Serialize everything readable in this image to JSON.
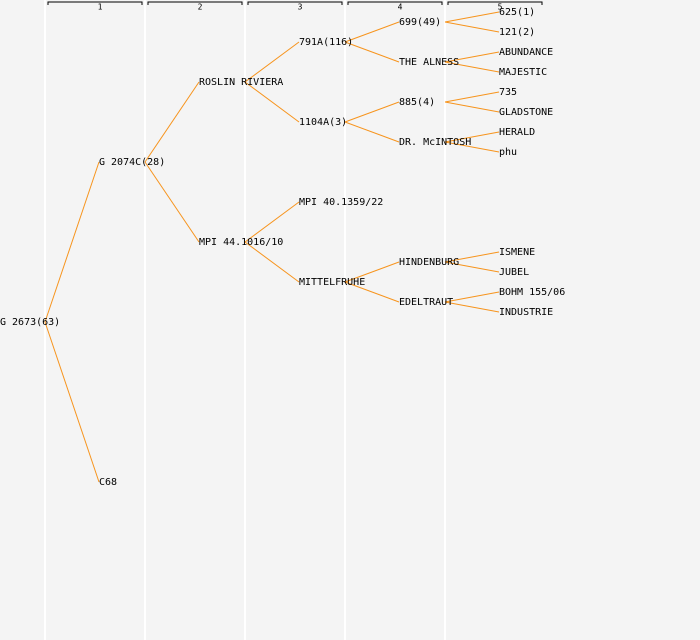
{
  "headers": [
    "1",
    "2",
    "3",
    "4",
    "5"
  ],
  "tree": {
    "label": "G 2673(63)",
    "children": [
      {
        "label": "G 2074C(28)",
        "children": [
          {
            "label": "ROSLIN RIVIERA",
            "children": [
              {
                "label": "791A(116)",
                "children": [
                  {
                    "label": "699(49)",
                    "children": [
                      {
                        "label": "625(1)"
                      },
                      {
                        "label": "121(2)"
                      }
                    ]
                  },
                  {
                    "label": "THE ALNESS",
                    "children": [
                      {
                        "label": "ABUNDANCE"
                      },
                      {
                        "label": "MAJESTIC"
                      }
                    ]
                  }
                ]
              },
              {
                "label": "1104A(3)",
                "children": [
                  {
                    "label": "885(4)",
                    "children": [
                      {
                        "label": "735"
                      },
                      {
                        "label": "GLADSTONE"
                      }
                    ]
                  },
                  {
                    "label": "DR. McINTOSH",
                    "children": [
                      {
                        "label": "HERALD"
                      },
                      {
                        "label": "phu"
                      }
                    ]
                  }
                ]
              }
            ]
          },
          {
            "label": "MPI 44.1016/10",
            "children": [
              {
                "label": "MPI 40.1359/22"
              },
              {
                "label": "MITTELFRUHE",
                "children": [
                  {
                    "label": "HINDENBURG",
                    "children": [
                      {
                        "label": "ISMENE"
                      },
                      {
                        "label": "JUBEL"
                      }
                    ]
                  },
                  {
                    "label": "EDELTRAUT",
                    "children": [
                      {
                        "label": "BOHM 155/06"
                      },
                      {
                        "label": "INDUSTRIE"
                      }
                    ]
                  }
                ]
              }
            ]
          }
        ]
      },
      {
        "label": "C68"
      }
    ]
  }
}
